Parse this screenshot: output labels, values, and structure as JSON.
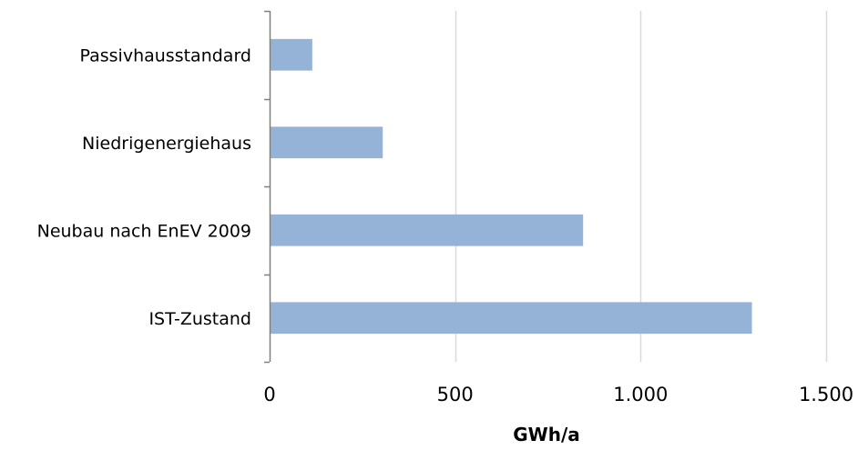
{
  "chart_data": {
    "type": "bar",
    "orientation": "horizontal",
    "categories": [
      "Passivhausstandard",
      "Niedrigenergiehaus",
      "Neubau nach EnEV 2009",
      "IST-Zustand"
    ],
    "values": [
      115,
      305,
      845,
      1300
    ],
    "xlabel": "GWh/a",
    "ylabel": "",
    "xlim": [
      0,
      1500
    ],
    "xticks": [
      0,
      500,
      1000,
      1500
    ],
    "xtick_labels": [
      "0",
      "500",
      "1.000",
      "1.500"
    ],
    "grid": "vertical",
    "legend": "none",
    "colors": {
      "bar": "#95b3d7",
      "grid": "#d9d9d9",
      "axis": "#808080"
    }
  }
}
